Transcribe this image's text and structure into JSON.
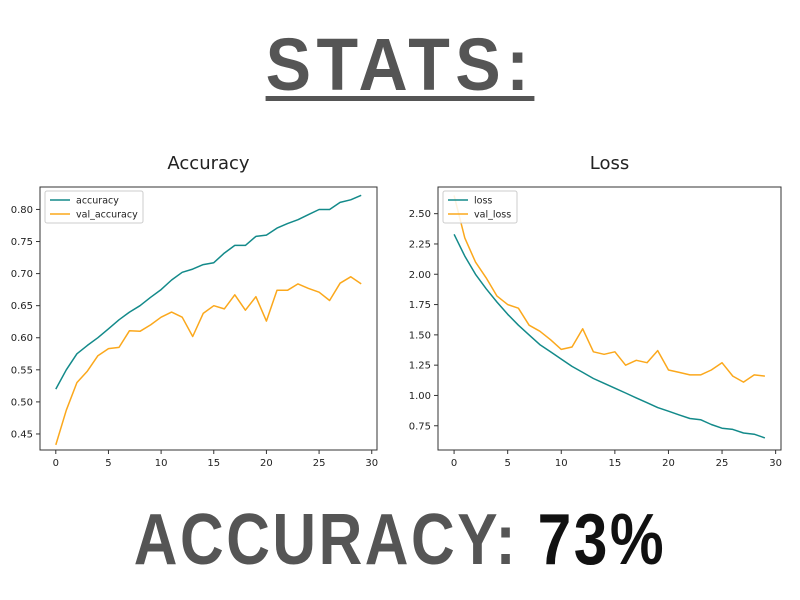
{
  "header": {
    "title": "STATS:"
  },
  "footer": {
    "label": "ACCURACY:",
    "value": "73%"
  },
  "colors": {
    "train": "#138a8a",
    "val": "#fba81c",
    "heading": "#555555"
  },
  "chart_data": [
    {
      "type": "line",
      "title": "Accuracy",
      "xlim": [
        -1.5,
        30.5
      ],
      "ylim": [
        0.425,
        0.835
      ],
      "xticks": [
        0,
        5,
        10,
        15,
        20,
        25,
        30
      ],
      "yticks": [
        0.45,
        0.5,
        0.55,
        0.6,
        0.65,
        0.7,
        0.75,
        0.8
      ],
      "ytick_format": 2,
      "legend_position": "top-left",
      "x": [
        0,
        1,
        2,
        3,
        4,
        5,
        6,
        7,
        8,
        9,
        10,
        11,
        12,
        13,
        14,
        15,
        16,
        17,
        18,
        19,
        20,
        21,
        22,
        23,
        24,
        25,
        26,
        27,
        28,
        29
      ],
      "series": [
        {
          "name": "accuracy",
          "color": "#138a8a",
          "values": [
            0.52,
            0.55,
            0.575,
            0.588,
            0.6,
            0.614,
            0.628,
            0.64,
            0.65,
            0.663,
            0.675,
            0.69,
            0.702,
            0.707,
            0.714,
            0.717,
            0.732,
            0.744,
            0.744,
            0.758,
            0.76,
            0.771,
            0.778,
            0.784,
            0.792,
            0.8,
            0.8,
            0.811,
            0.815,
            0.822
          ]
        },
        {
          "name": "val_accuracy",
          "color": "#fba81c",
          "values": [
            0.433,
            0.487,
            0.53,
            0.548,
            0.572,
            0.583,
            0.585,
            0.611,
            0.61,
            0.62,
            0.632,
            0.64,
            0.632,
            0.602,
            0.638,
            0.65,
            0.645,
            0.667,
            0.643,
            0.664,
            0.626,
            0.674,
            0.674,
            0.684,
            0.677,
            0.671,
            0.658,
            0.685,
            0.695,
            0.684
          ]
        }
      ]
    },
    {
      "type": "line",
      "title": "Loss",
      "xlim": [
        -1.5,
        30.5
      ],
      "ylim": [
        0.55,
        2.72
      ],
      "xticks": [
        0,
        5,
        10,
        15,
        20,
        25,
        30
      ],
      "yticks": [
        0.75,
        1.0,
        1.25,
        1.5,
        1.75,
        2.0,
        2.25,
        2.5
      ],
      "ytick_format": 2,
      "legend_position": "top-left",
      "x": [
        0,
        1,
        2,
        3,
        4,
        5,
        6,
        7,
        8,
        9,
        10,
        11,
        12,
        13,
        14,
        15,
        16,
        17,
        18,
        19,
        20,
        21,
        22,
        23,
        24,
        25,
        26,
        27,
        28,
        29
      ],
      "series": [
        {
          "name": "loss",
          "color": "#138a8a",
          "values": [
            2.33,
            2.15,
            2.0,
            1.88,
            1.77,
            1.67,
            1.58,
            1.5,
            1.42,
            1.36,
            1.3,
            1.24,
            1.19,
            1.14,
            1.1,
            1.06,
            1.02,
            0.98,
            0.94,
            0.9,
            0.87,
            0.84,
            0.81,
            0.8,
            0.76,
            0.73,
            0.72,
            0.69,
            0.68,
            0.65
          ]
        },
        {
          "name": "val_loss",
          "color": "#fba81c",
          "values": [
            2.65,
            2.3,
            2.1,
            1.97,
            1.82,
            1.75,
            1.72,
            1.58,
            1.53,
            1.46,
            1.38,
            1.4,
            1.55,
            1.36,
            1.34,
            1.36,
            1.25,
            1.29,
            1.27,
            1.37,
            1.21,
            1.19,
            1.17,
            1.17,
            1.21,
            1.27,
            1.16,
            1.11,
            1.17,
            1.16
          ]
        }
      ]
    }
  ]
}
